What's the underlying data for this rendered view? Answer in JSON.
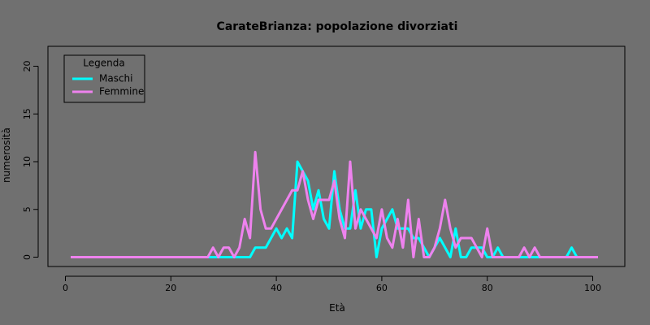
{
  "chart_data": {
    "type": "line",
    "title": "CarateBrianza: popolazione divorziati",
    "xlabel": "Età",
    "ylabel": "numerosità",
    "xlim": [
      1,
      101
    ],
    "ylim": [
      0,
      21
    ],
    "xticks": [
      0,
      20,
      40,
      60,
      80,
      100
    ],
    "yticks": [
      0,
      5,
      10,
      15,
      20
    ],
    "legend": {
      "title": "Legenda",
      "position": "top-left"
    },
    "series": [
      {
        "name": "Maschi",
        "color": "#00FFFF",
        "x": [
          1,
          2,
          3,
          4,
          5,
          6,
          7,
          8,
          9,
          10,
          11,
          12,
          13,
          14,
          15,
          16,
          17,
          18,
          19,
          20,
          21,
          22,
          23,
          24,
          25,
          26,
          27,
          28,
          29,
          30,
          31,
          32,
          33,
          34,
          35,
          36,
          37,
          38,
          39,
          40,
          41,
          42,
          43,
          44,
          45,
          46,
          47,
          48,
          49,
          50,
          51,
          52,
          53,
          54,
          55,
          56,
          57,
          58,
          59,
          60,
          61,
          62,
          63,
          64,
          65,
          66,
          67,
          68,
          69,
          70,
          71,
          72,
          73,
          74,
          75,
          76,
          77,
          78,
          79,
          80,
          81,
          82,
          83,
          84,
          85,
          86,
          87,
          88,
          89,
          90,
          91,
          92,
          93,
          94,
          95,
          96,
          97,
          98,
          99,
          100,
          101
        ],
        "values": [
          0,
          0,
          0,
          0,
          0,
          0,
          0,
          0,
          0,
          0,
          0,
          0,
          0,
          0,
          0,
          0,
          0,
          0,
          0,
          0,
          0,
          0,
          0,
          0,
          0,
          0,
          0,
          0,
          0,
          0,
          0,
          0,
          0,
          0,
          0,
          1,
          1,
          1,
          2,
          3,
          2,
          3,
          2,
          10,
          9,
          8,
          5,
          7,
          4,
          3,
          9,
          5,
          3,
          3,
          7,
          3,
          5,
          5,
          0,
          3,
          4,
          5,
          3,
          3,
          3,
          2,
          2,
          1,
          0,
          1,
          2,
          1,
          0,
          3,
          0,
          0,
          1,
          1,
          1,
          0,
          0,
          1,
          0,
          0,
          0,
          0,
          0,
          0,
          0,
          0,
          0,
          0,
          0,
          0,
          0,
          1,
          0,
          0,
          0,
          0,
          0
        ],
        "legend_label": "Maschi"
      },
      {
        "name": "Femmine",
        "color": "#EE82EE",
        "x": [
          1,
          2,
          3,
          4,
          5,
          6,
          7,
          8,
          9,
          10,
          11,
          12,
          13,
          14,
          15,
          16,
          17,
          18,
          19,
          20,
          21,
          22,
          23,
          24,
          25,
          26,
          27,
          28,
          29,
          30,
          31,
          32,
          33,
          34,
          35,
          36,
          37,
          38,
          39,
          40,
          41,
          42,
          43,
          44,
          45,
          46,
          47,
          48,
          49,
          50,
          51,
          52,
          53,
          54,
          55,
          56,
          57,
          58,
          59,
          60,
          61,
          62,
          63,
          64,
          65,
          66,
          67,
          68,
          69,
          70,
          71,
          72,
          73,
          74,
          75,
          76,
          77,
          78,
          79,
          80,
          81,
          82,
          83,
          84,
          85,
          86,
          87,
          88,
          89,
          90,
          91,
          92,
          93,
          94,
          95,
          96,
          97,
          98,
          99,
          100,
          101
        ],
        "values": [
          0,
          0,
          0,
          0,
          0,
          0,
          0,
          0,
          0,
          0,
          0,
          0,
          0,
          0,
          0,
          0,
          0,
          0,
          0,
          0,
          0,
          0,
          0,
          0,
          0,
          0,
          0,
          1,
          0,
          1,
          1,
          0,
          1,
          4,
          2,
          11,
          5,
          3,
          3,
          4,
          5,
          6,
          7,
          7,
          9,
          6,
          4,
          6,
          6,
          6,
          8,
          4,
          2,
          10,
          3,
          5,
          4,
          3,
          2,
          5,
          2,
          1,
          4,
          1,
          6,
          0,
          4,
          0,
          0,
          1,
          3,
          6,
          3,
          1,
          2,
          2,
          2,
          1,
          0,
          3,
          0,
          0,
          0,
          0,
          0,
          0,
          1,
          0,
          1,
          0,
          0,
          0,
          0,
          0,
          0,
          0,
          0,
          0,
          0,
          0,
          0
        ],
        "legend_label": "Femmine"
      }
    ]
  }
}
